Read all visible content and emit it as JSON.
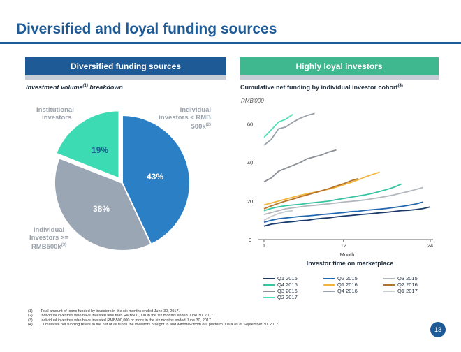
{
  "slide": {
    "title": "Diversified and loyal funding sources",
    "page_number": "13"
  },
  "left_panel": {
    "banner": "Diversified funding sources",
    "subhead_main": "Investment volume",
    "subhead_sup": "(1)",
    "subhead_tail": " breakdown"
  },
  "right_panel": {
    "banner": "Highly loyal investors",
    "subhead_main": "Cumulative net funding by individual investor cohort",
    "subhead_sup": "(4)",
    "unit": "RMB'000"
  },
  "pie_labels": {
    "institutional_line1": "Institutional",
    "institutional_line2": "investors",
    "small_line1": "Individual",
    "small_line2": "investors < RMB",
    "small_line3": "500k",
    "small_sup": "(2)",
    "large_line1": "Individual",
    "large_line2": "Investors >=",
    "large_line3": "RMB500k",
    "large_sup": "(3)"
  },
  "legend_title": "Investor time on marketplace",
  "footnotes": [
    {
      "num": "(1)",
      "text": "Total amount of loans funded by investors in the six months ended June 30, 2017."
    },
    {
      "num": "(2)",
      "text": "Individual investors who have invested less than RMB500,000 in the six months ended June 30, 2017."
    },
    {
      "num": "(3)",
      "text": "Individual investors who have invested RMB500,000 or more in the six months ended June 30, 2017."
    },
    {
      "num": "(4)",
      "text": "Cumulative net funding refers to the net of all funds the investors brought to and withdrew from our platform. Data as of September 30, 2017."
    }
  ],
  "colors": {
    "brand_blue": "#1e5a96",
    "green": "#3fb890"
  },
  "chart_data": [
    {
      "type": "pie",
      "title": "",
      "slices": [
        {
          "label": "Individual investors < RMB 500k",
          "value": 43,
          "display": "43%",
          "color": "#2b7fc5",
          "label_color": "#ffffff",
          "exploded": false
        },
        {
          "label": "Individual Investors >= RMB500k",
          "value": 38,
          "display": "38%",
          "color": "#9aa6b4",
          "label_color": "#ffffff",
          "exploded": false
        },
        {
          "label": "Institutional investors",
          "value": 19,
          "display": "19%",
          "color": "#3ddbb4",
          "label_color": "#1e5a96",
          "exploded": true
        }
      ]
    },
    {
      "type": "line",
      "title": "Cumulative net funding by individual investor cohort",
      "xlabel": "Month",
      "ylabel": "RMB'000",
      "xlim": [
        0,
        24
      ],
      "ylim": [
        0,
        70
      ],
      "x_ticks": [
        1,
        12,
        24
      ],
      "y_ticks": [
        0,
        20,
        40,
        60
      ],
      "grid": false,
      "legend_position": "bottom",
      "series": [
        {
          "name": "Q1 2015",
          "color": "#1a3a6b",
          "x": [
            1,
            2,
            3,
            4,
            5,
            6,
            7,
            8,
            9,
            10,
            11,
            12,
            13,
            14,
            15,
            16,
            17,
            18,
            19,
            20,
            21,
            22,
            23,
            24
          ],
          "y": [
            7,
            8,
            8.5,
            9,
            9.3,
            9.8,
            10,
            10.6,
            11,
            11.3,
            11.8,
            12.2,
            12.5,
            12.9,
            13.2,
            13.5,
            13.9,
            14.2,
            14.6,
            15,
            15.2,
            15.6,
            16.1,
            17
          ]
        },
        {
          "name": "Q2 2015",
          "color": "#2166b0",
          "x": [
            1,
            2,
            3,
            4,
            5,
            6,
            7,
            8,
            9,
            10,
            11,
            12,
            13,
            14,
            15,
            16,
            17,
            18,
            19,
            20,
            21,
            22,
            23
          ],
          "y": [
            9,
            10,
            10.8,
            11.2,
            11.6,
            12,
            12.3,
            12.6,
            13,
            13.3,
            13.7,
            14,
            14.5,
            14.7,
            15.2,
            15.5,
            15.8,
            16.2,
            16.7,
            17.2,
            17.8,
            18.5,
            19.5
          ]
        },
        {
          "name": "Q3 2015",
          "color": "#b3b7bd",
          "x": [
            1,
            2,
            3,
            4,
            5,
            6,
            7,
            8,
            9,
            10,
            11,
            12,
            13,
            14,
            15,
            16,
            17,
            18,
            19,
            20,
            21,
            22,
            23
          ],
          "y": [
            13,
            14,
            15,
            16,
            16.5,
            17,
            17.5,
            17.8,
            18.2,
            18.6,
            19,
            19.5,
            19.8,
            20.2,
            20.6,
            21.2,
            21.8,
            22.5,
            23.2,
            24.1,
            25,
            26,
            27
          ]
        },
        {
          "name": "Q4 2015",
          "color": "#37c4a2",
          "x": [
            1,
            2,
            3,
            4,
            5,
            6,
            7,
            8,
            9,
            10,
            11,
            12,
            13,
            14,
            15,
            16,
            17,
            18,
            19,
            20
          ],
          "y": [
            15,
            16.2,
            17,
            17.6,
            18,
            18.3,
            18.8,
            19.2,
            19.6,
            20,
            20.7,
            21.3,
            22,
            22.6,
            23.2,
            24,
            25,
            26,
            27.2,
            28.8
          ]
        },
        {
          "name": "Q1 2016",
          "color": "#f2b53d",
          "x": [
            1,
            2,
            3,
            4,
            5,
            6,
            7,
            8,
            9,
            10,
            11,
            12,
            13,
            14,
            15,
            16,
            17
          ],
          "y": [
            18,
            19,
            20,
            21,
            22,
            23,
            23.8,
            24.6,
            25.3,
            26.2,
            27.2,
            28.4,
            29.6,
            31,
            32.5,
            33.8,
            35
          ]
        },
        {
          "name": "Q2 2016",
          "color": "#b5732a",
          "x": [
            1,
            2,
            3,
            4,
            5,
            6,
            7,
            8,
            9,
            10,
            11,
            12,
            13,
            14
          ],
          "y": [
            16,
            17.5,
            18.8,
            20,
            21,
            22.2,
            23.2,
            24.3,
            25.4,
            26.5,
            27.8,
            29,
            30.5,
            31.6
          ]
        },
        {
          "name": "Q3 2016",
          "color": "#8b9097",
          "x": [
            1,
            2,
            3,
            4,
            5,
            6,
            7,
            8,
            9,
            10,
            11
          ],
          "y": [
            30,
            32,
            35.5,
            37,
            38.5,
            40,
            42,
            43,
            44,
            45.5,
            46.5
          ]
        },
        {
          "name": "Q4 2016",
          "color": "#98a0aa",
          "x": [
            1,
            2,
            3,
            4,
            5,
            6,
            7,
            8
          ],
          "y": [
            49,
            52,
            57.5,
            58.5,
            61,
            63,
            64.5,
            65.5
          ]
        },
        {
          "name": "Q1 2017",
          "color": "#c7cbd0",
          "x": [
            1,
            2,
            3,
            4,
            5
          ],
          "y": [
            10,
            12,
            13.5,
            14.5,
            15
          ]
        },
        {
          "name": "Q2 2017",
          "color": "#4fe0b8",
          "x": [
            1,
            2,
            3,
            4,
            5
          ],
          "y": [
            53,
            57,
            61,
            62.5,
            65
          ]
        }
      ]
    }
  ]
}
